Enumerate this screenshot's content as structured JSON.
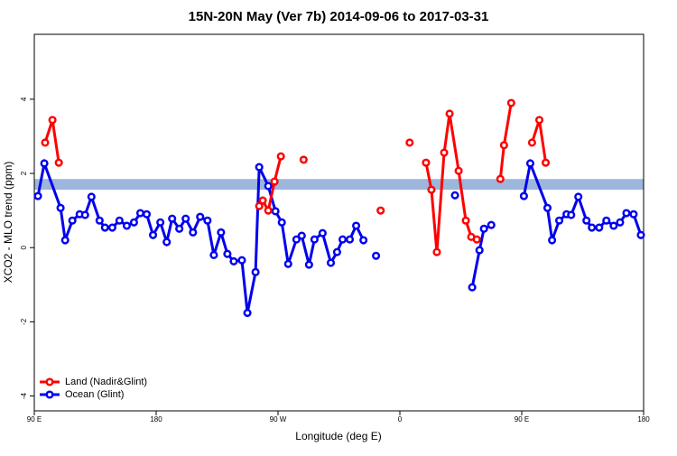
{
  "chart_data": {
    "type": "line",
    "title": "15N-20N May (Ver 7b)   2014-09-06 to 2017-03-31",
    "x_label": "Longitude (deg E)",
    "y_label": "XCO2 - MLO trend (ppm)",
    "xlim": [
      90,
      540
    ],
    "ylim": [
      -4.4,
      5.75
    ],
    "xticks": [
      {
        "value": 90,
        "label": "90 E"
      },
      180,
      {
        "value": 270,
        "label": "90 W"
      },
      {
        "value": 360,
        "label": "0"
      },
      {
        "value": 450,
        "label": "90 E"
      },
      {
        "value": 540,
        "label": "180"
      }
    ],
    "yticks": [
      -4,
      -2,
      0,
      2,
      4
    ],
    "band": [
      1.56,
      1.85
    ],
    "band_color": "#9db6dc",
    "legend": "bottom-left",
    "series": [
      {
        "name": "Land (Nadir&Glint)",
        "color": "#ff0000",
        "x": [
          98.0,
          103.4,
          108.1,
          null,
          256.1,
          258.7,
          262.8,
          267.4,
          272.1,
          null,
          288.9,
          null,
          345.8,
          null,
          367.2,
          null,
          379.3,
          383.3,
          387.3,
          392.7,
          396.7,
          403.4,
          408.7,
          412.7,
          416.8,
          null,
          434.2,
          436.9,
          442.2,
          null,
          457.6,
          463.0,
          467.7
        ],
        "values": [
          2.83,
          3.44,
          2.29,
          null,
          1.12,
          1.27,
          1.0,
          1.78,
          2.46,
          null,
          2.37,
          null,
          1.0,
          null,
          2.83,
          null,
          2.29,
          1.56,
          -0.12,
          2.56,
          3.61,
          2.07,
          0.73,
          0.29,
          0.22,
          null,
          1.85,
          2.76,
          3.9,
          null,
          2.83,
          3.44,
          2.29
        ]
      },
      {
        "name": "Ocean (Glint)",
        "color": "#0000ee",
        "x": [
          92.7,
          97.4,
          109.4,
          112.8,
          118.1,
          123.5,
          127.5,
          132.2,
          138.2,
          142.2,
          147.6,
          152.9,
          158.3,
          163.6,
          168.3,
          173.0,
          177.7,
          183.1,
          187.8,
          191.8,
          197.1,
          201.8,
          207.2,
          212.5,
          217.9,
          222.6,
          227.9,
          232.6,
          237.3,
          243.3,
          247.4,
          253.4,
          256.1,
          262.8,
          268.1,
          272.8,
          277.5,
          283.6,
          287.5,
          292.9,
          296.9,
          302.9,
          309.0,
          313.6,
          317.7,
          323.0,
          327.7,
          333.1,
          null,
          342.4,
          null,
          400.7,
          null,
          413.4,
          418.8,
          422.1,
          427.5,
          null,
          451.6,
          456.3,
          469.0,
          472.4,
          477.7,
          483.1,
          486.5,
          491.8,
          497.8,
          501.8,
          507.2,
          512.5,
          517.9,
          522.6,
          527.3,
          532.6,
          538.0
        ],
        "values": [
          1.39,
          2.27,
          1.07,
          0.2,
          0.73,
          0.9,
          0.88,
          1.37,
          0.73,
          0.54,
          0.54,
          0.73,
          0.59,
          0.68,
          0.93,
          0.9,
          0.34,
          0.68,
          0.15,
          0.78,
          0.51,
          0.78,
          0.41,
          0.83,
          0.73,
          -0.2,
          0.41,
          -0.17,
          -0.37,
          -0.34,
          -1.76,
          -0.66,
          2.17,
          1.66,
          0.98,
          0.68,
          -0.44,
          0.22,
          0.32,
          -0.46,
          0.22,
          0.39,
          -0.41,
          -0.12,
          0.22,
          0.22,
          0.59,
          0.2,
          null,
          -0.22,
          null,
          1.41,
          null,
          -1.07,
          -0.07,
          0.51,
          0.61,
          null,
          1.39,
          2.27,
          1.07,
          0.2,
          0.73,
          0.9,
          0.88,
          1.37,
          0.73,
          0.54,
          0.54,
          0.73,
          0.59,
          0.68,
          0.93,
          0.9,
          0.34
        ]
      }
    ]
  }
}
